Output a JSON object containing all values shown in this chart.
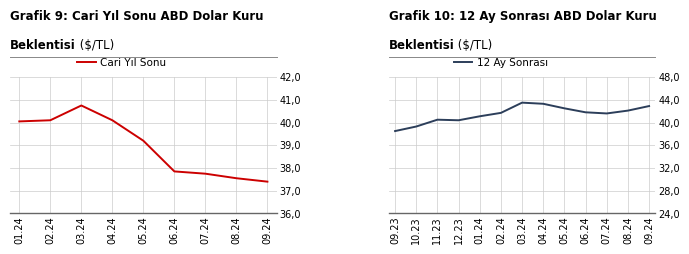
{
  "chart1": {
    "title_line1": "Grafik 9: Cari Yıl Sonu ABD Dolar Kuru",
    "title_line2_bold": "Beklentisi",
    "title_line2_normal": " ($/TL)",
    "legend_label": "Cari Yıl Sonu",
    "line_color": "#cc0000",
    "x_labels": [
      "01.24",
      "02.24",
      "03.24",
      "04.24",
      "05.24",
      "06.24",
      "07.24",
      "08.24",
      "09.24"
    ],
    "y_values": [
      40.05,
      40.1,
      40.75,
      40.1,
      39.2,
      37.85,
      37.75,
      37.55,
      37.4
    ],
    "ylim": [
      36.0,
      42.0
    ],
    "yticks": [
      36.0,
      37.0,
      38.0,
      39.0,
      40.0,
      41.0,
      42.0
    ],
    "ytick_labels": [
      "36,0",
      "37,0",
      "38,0",
      "39,0",
      "40,0",
      "41,0",
      "42,0"
    ]
  },
  "chart2": {
    "title_line1": "Grafik 10: 12 Ay Sonrası ABD Dolar Kuru",
    "title_line2_bold": "Beklentisi",
    "title_line2_normal": " ($/TL)",
    "legend_label": "12 Ay Sonrası",
    "line_color": "#2c3e5a",
    "x_labels": [
      "09.23",
      "10.23",
      "11.23",
      "12.23",
      "01.24",
      "02.24",
      "03.24",
      "04.24",
      "05.24",
      "06.24",
      "07.24",
      "08.24",
      "09.24"
    ],
    "y_values": [
      38.5,
      39.3,
      40.5,
      40.4,
      41.1,
      41.7,
      43.5,
      43.3,
      42.5,
      41.8,
      41.6,
      42.1,
      42.9
    ],
    "ylim": [
      24.0,
      48.0
    ],
    "yticks": [
      24.0,
      28.0,
      32.0,
      36.0,
      40.0,
      44.0,
      48.0
    ],
    "ytick_labels": [
      "24,0",
      "28,0",
      "32,0",
      "36,0",
      "40,0",
      "44,0",
      "48,0"
    ]
  },
  "background_color": "#ffffff",
  "grid_color": "#cccccc",
  "separator_color": "#888888",
  "title_fontsize": 8.5,
  "legend_fontsize": 7.5,
  "tick_fontsize": 7.0
}
